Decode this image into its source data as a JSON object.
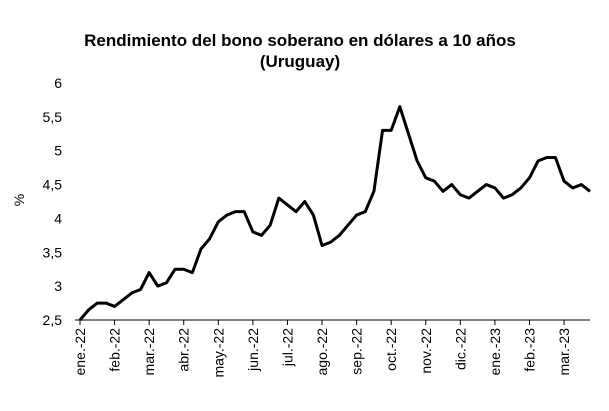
{
  "chart_data": {
    "type": "line",
    "title": "Rendimiento del bono soberano en dólares a 10 años (Uruguay)",
    "y_label": "%",
    "xlim": [
      0,
      14.75
    ],
    "xticks": [
      {
        "value": 0,
        "label": "ene.-22"
      },
      {
        "value": 1,
        "label": "feb.-22"
      },
      {
        "value": 2,
        "label": "mar.-22"
      },
      {
        "value": 3,
        "label": "abr.-22"
      },
      {
        "value": 4,
        "label": "may.-22"
      },
      {
        "value": 5,
        "label": "jun.-22"
      },
      {
        "value": 6,
        "label": "jul.-22"
      },
      {
        "value": 7,
        "label": "ago.-22"
      },
      {
        "value": 8,
        "label": "sep.-22"
      },
      {
        "value": 9,
        "label": "oct.-22"
      },
      {
        "value": 10,
        "label": "nov.-22"
      },
      {
        "value": 11,
        "label": "dic.-22"
      },
      {
        "value": 12,
        "label": "ene.-23"
      },
      {
        "value": 13,
        "label": "feb.-23"
      },
      {
        "value": 14,
        "label": "mar.-23"
      }
    ],
    "ylim": [
      2.5,
      6
    ],
    "yticks": [
      {
        "value": 2.5,
        "label": "2,5"
      },
      3,
      {
        "value": 3.5,
        "label": "3,5"
      },
      4,
      {
        "value": 4.5,
        "label": "4,5"
      },
      5,
      {
        "value": 5.5,
        "label": "5,5"
      },
      6
    ],
    "x": [
      0,
      0.25,
      0.5,
      0.75,
      1,
      1.25,
      1.5,
      1.75,
      2,
      2.25,
      2.5,
      2.75,
      3,
      3.25,
      3.5,
      3.75,
      4,
      4.25,
      4.5,
      4.75,
      5,
      5.25,
      5.5,
      5.75,
      6,
      6.25,
      6.5,
      6.75,
      7,
      7.25,
      7.5,
      7.75,
      8,
      8.25,
      8.5,
      8.75,
      9,
      9.25,
      9.5,
      9.75,
      10,
      10.25,
      10.5,
      10.75,
      11,
      11.25,
      11.5,
      11.75,
      12,
      12.25,
      12.5,
      12.75,
      13,
      13.25,
      13.5,
      13.75,
      14,
      14.25,
      14.5,
      14.75
    ],
    "series": [
      {
        "color": "#000000",
        "values": [
          2.5,
          2.65,
          2.75,
          2.75,
          2.7,
          2.8,
          2.9,
          2.95,
          3.2,
          3.0,
          3.05,
          3.25,
          3.25,
          3.2,
          3.55,
          3.7,
          3.95,
          4.05,
          4.1,
          4.1,
          3.8,
          3.75,
          3.9,
          4.3,
          4.2,
          4.1,
          4.25,
          4.05,
          3.6,
          3.65,
          3.75,
          3.9,
          4.05,
          4.1,
          4.4,
          5.3,
          5.3,
          5.65,
          5.25,
          4.85,
          4.6,
          4.55,
          4.4,
          4.5,
          4.35,
          4.3,
          4.4,
          4.5,
          4.45,
          4.3,
          4.35,
          4.45,
          4.6,
          4.85,
          4.9,
          4.9,
          4.55,
          4.45,
          4.5,
          4.4
        ]
      }
    ]
  }
}
